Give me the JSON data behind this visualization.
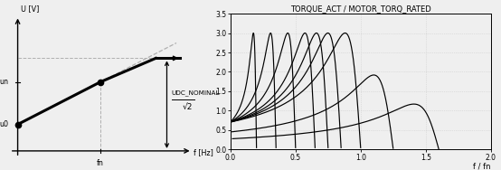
{
  "left_chart": {
    "xlabel": "f [Hz]",
    "ylabel": "U [V]",
    "u0_y": 0.2,
    "un_y": 0.52,
    "umax_y": 0.7,
    "fn_x": 0.52,
    "flat_end_x": 0.92,
    "annotation_text": "UDC_NOMINAL",
    "annotation_sqrt": "√2",
    "background_color": "#efefef",
    "line_color": "black",
    "dashed_color": "#b0b0b0",
    "label_u0": "u0",
    "label_un": "un",
    "label_fn": "fn"
  },
  "right_chart": {
    "title": "TORQUE_ACT / MOTOR_TORQ_RATED",
    "xlabel": "f / fn",
    "xlim": [
      0,
      2
    ],
    "ylim": [
      0,
      3.5
    ],
    "yticks": [
      0,
      0.5,
      1.0,
      1.5,
      2.0,
      2.5,
      3.0,
      3.5
    ],
    "xticks": [
      0,
      0.5,
      1.0,
      1.5,
      2.0
    ],
    "grid_color": "#cccccc",
    "line_color": "black",
    "background_color": "#efefef",
    "curve_f_sync": [
      0.2,
      0.35,
      0.5,
      0.65,
      0.75,
      0.85,
      1.0,
      1.25,
      1.6
    ],
    "T_max_base": 3.0,
    "s_breakdown": 0.12
  }
}
